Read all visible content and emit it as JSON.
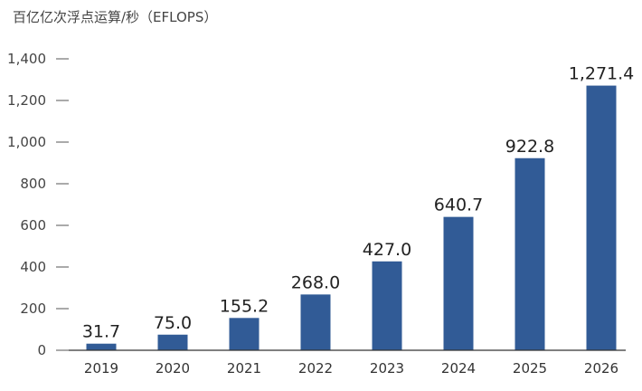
{
  "chart_data": {
    "type": "bar",
    "title": "百亿亿次浮点运算/秒（EFLOPS）",
    "xlabel": "",
    "ylabel": "",
    "categories": [
      "2019",
      "2020",
      "2021",
      "2022",
      "2023",
      "2024",
      "2025",
      "2026"
    ],
    "values": [
      31.7,
      75.0,
      155.2,
      268.0,
      427.0,
      640.7,
      922.8,
      1271.4
    ],
    "value_labels": [
      "31.7",
      "75.0",
      "155.2",
      "268.0",
      "427.0",
      "640.7",
      "922.8",
      "1,271.4"
    ],
    "ylim": [
      0,
      1400
    ],
    "yticks": [
      0,
      200,
      400,
      600,
      800,
      1000,
      1200,
      1400
    ],
    "ytick_labels": [
      "0",
      "200",
      "400",
      "600",
      "800",
      "1,000",
      "1,200",
      "1,400"
    ],
    "grid": false,
    "bar_color": "#315b96",
    "axis_color": "#333333"
  }
}
